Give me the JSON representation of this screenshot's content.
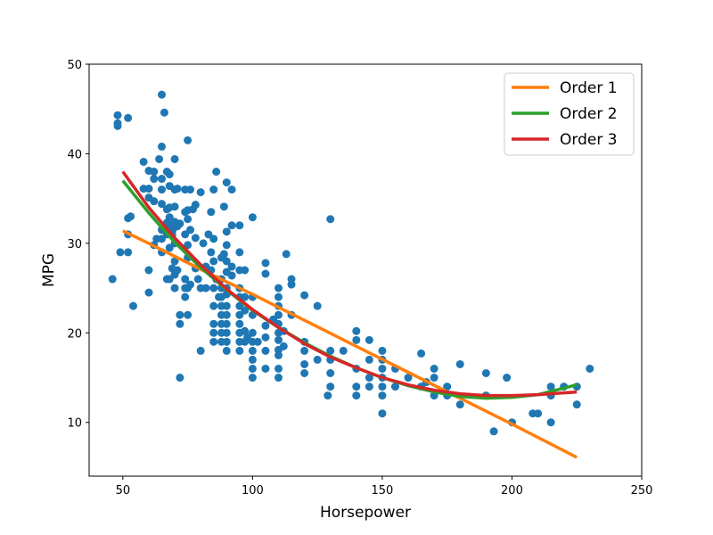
{
  "chart_data": {
    "type": "scatter",
    "xlabel": "Horsepower",
    "ylabel": "MPG",
    "xlim": [
      37,
      250
    ],
    "ylim": [
      4,
      50
    ],
    "xticks": [
      50,
      100,
      150,
      200,
      250
    ],
    "yticks": [
      10,
      20,
      30,
      40,
      50
    ],
    "grid": false,
    "legend_position": "top-right",
    "colors": {
      "points": "#1f77b4",
      "order1": "#ff7f0e",
      "order2": "#2ca02c",
      "order3": "#d62728"
    },
    "points": [
      [
        46,
        26
      ],
      [
        48,
        44.3
      ],
      [
        48,
        43.4
      ],
      [
        48,
        43.1
      ],
      [
        49,
        29
      ],
      [
        52,
        44
      ],
      [
        52,
        32.8
      ],
      [
        52,
        31
      ],
      [
        52,
        29
      ],
      [
        53,
        33
      ],
      [
        54,
        23
      ],
      [
        58,
        39.1
      ],
      [
        58,
        36.1
      ],
      [
        60,
        38.1
      ],
      [
        60,
        36.1
      ],
      [
        60,
        35.1
      ],
      [
        60,
        27
      ],
      [
        60,
        24.5
      ],
      [
        62,
        38
      ],
      [
        62,
        37.2
      ],
      [
        62,
        34.7
      ],
      [
        62,
        29.8
      ],
      [
        63,
        30.5
      ],
      [
        64,
        39.4
      ],
      [
        65,
        46.6
      ],
      [
        65,
        40.8
      ],
      [
        65,
        37.2
      ],
      [
        65,
        36
      ],
      [
        65,
        34.4
      ],
      [
        65,
        31.5
      ],
      [
        65,
        30.5
      ],
      [
        65,
        29
      ],
      [
        66,
        44.6
      ],
      [
        67,
        38
      ],
      [
        67,
        33.8
      ],
      [
        67,
        32.3
      ],
      [
        67,
        31.6
      ],
      [
        67,
        31
      ],
      [
        67,
        26
      ],
      [
        68,
        37.7
      ],
      [
        68,
        36.4
      ],
      [
        68,
        34
      ],
      [
        68,
        32.9
      ],
      [
        68,
        29.5
      ],
      [
        68,
        26
      ],
      [
        69,
        32
      ],
      [
        69,
        31.3
      ],
      [
        69,
        30.9
      ],
      [
        69,
        27.2
      ],
      [
        70,
        39.4
      ],
      [
        70,
        36
      ],
      [
        70,
        34.1
      ],
      [
        70,
        32.4
      ],
      [
        70,
        31.8
      ],
      [
        70,
        30
      ],
      [
        70,
        28
      ],
      [
        70,
        26.5
      ],
      [
        70,
        25
      ],
      [
        71,
        36.1
      ],
      [
        71,
        31.9
      ],
      [
        71,
        27
      ],
      [
        72,
        32.2
      ],
      [
        72,
        22
      ],
      [
        72,
        21
      ],
      [
        72,
        15
      ],
      [
        74,
        36
      ],
      [
        74,
        33.5
      ],
      [
        74,
        31
      ],
      [
        74,
        26
      ],
      [
        74,
        25
      ],
      [
        74,
        24
      ],
      [
        75,
        41.5
      ],
      [
        75,
        33.7
      ],
      [
        75,
        32.7
      ],
      [
        75,
        29.8
      ],
      [
        75,
        28.4
      ],
      [
        75,
        25
      ],
      [
        75,
        22
      ],
      [
        76,
        36
      ],
      [
        76,
        31.5
      ],
      [
        76,
        25.4
      ],
      [
        77,
        33.8
      ],
      [
        78,
        34.3
      ],
      [
        78,
        30.6
      ],
      [
        78,
        27.2
      ],
      [
        79,
        26
      ],
      [
        80,
        35.7
      ],
      [
        80,
        25
      ],
      [
        80,
        18
      ],
      [
        81,
        30
      ],
      [
        82,
        27.4
      ],
      [
        82,
        25
      ],
      [
        83,
        31
      ],
      [
        84,
        33.5
      ],
      [
        84,
        29
      ],
      [
        84,
        27
      ],
      [
        85,
        36
      ],
      [
        85,
        30.5
      ],
      [
        85,
        28
      ],
      [
        85,
        25
      ],
      [
        85,
        23
      ],
      [
        85,
        21
      ],
      [
        85,
        20
      ],
      [
        85,
        19
      ],
      [
        86,
        38
      ],
      [
        86,
        26
      ],
      [
        87,
        24
      ],
      [
        88,
        28.4
      ],
      [
        88,
        26
      ],
      [
        88,
        25
      ],
      [
        88,
        24
      ],
      [
        88,
        23
      ],
      [
        88,
        22
      ],
      [
        88,
        21
      ],
      [
        88,
        20
      ],
      [
        88,
        19
      ],
      [
        89,
        34.1
      ],
      [
        89,
        28.8
      ],
      [
        90,
        36.8
      ],
      [
        90,
        31.3
      ],
      [
        90,
        29.8
      ],
      [
        90,
        28
      ],
      [
        90,
        26.8
      ],
      [
        90,
        25
      ],
      [
        90,
        24.3
      ],
      [
        90,
        23
      ],
      [
        90,
        22
      ],
      [
        90,
        21
      ],
      [
        90,
        20
      ],
      [
        90,
        19
      ],
      [
        90,
        18
      ],
      [
        92,
        36
      ],
      [
        92,
        32
      ],
      [
        92,
        27.4
      ],
      [
        92,
        26.4
      ],
      [
        95,
        32
      ],
      [
        95,
        29
      ],
      [
        95,
        27
      ],
      [
        95,
        25
      ],
      [
        95,
        24
      ],
      [
        95,
        23
      ],
      [
        95,
        22
      ],
      [
        95,
        21
      ],
      [
        95,
        20
      ],
      [
        95,
        19
      ],
      [
        95,
        18
      ],
      [
        97,
        27
      ],
      [
        97,
        24
      ],
      [
        97,
        22.5
      ],
      [
        97,
        20.2
      ],
      [
        97,
        19
      ],
      [
        98,
        19.5
      ],
      [
        100,
        32.9
      ],
      [
        100,
        24
      ],
      [
        100,
        22
      ],
      [
        100,
        20
      ],
      [
        100,
        19
      ],
      [
        100,
        18
      ],
      [
        100,
        17
      ],
      [
        100,
        16
      ],
      [
        100,
        15
      ],
      [
        102,
        19
      ],
      [
        105,
        27.8
      ],
      [
        105,
        26.6
      ],
      [
        105,
        20.8
      ],
      [
        105,
        19.5
      ],
      [
        105,
        18
      ],
      [
        105,
        16
      ],
      [
        108,
        21.5
      ],
      [
        110,
        25
      ],
      [
        110,
        24
      ],
      [
        110,
        23
      ],
      [
        110,
        22
      ],
      [
        110,
        21
      ],
      [
        110,
        20
      ],
      [
        110,
        19.2
      ],
      [
        110,
        18.1
      ],
      [
        110,
        17.5
      ],
      [
        110,
        16
      ],
      [
        110,
        15
      ],
      [
        112,
        20.2
      ],
      [
        112,
        18.5
      ],
      [
        113,
        28.8
      ],
      [
        115,
        26
      ],
      [
        115,
        25.4
      ],
      [
        115,
        22
      ],
      [
        120,
        24.2
      ],
      [
        120,
        19
      ],
      [
        120,
        18
      ],
      [
        120,
        16.5
      ],
      [
        120,
        15.5
      ],
      [
        125,
        23
      ],
      [
        125,
        17
      ],
      [
        129,
        13
      ],
      [
        130,
        32.7
      ],
      [
        130,
        18
      ],
      [
        130,
        17
      ],
      [
        130,
        15.5
      ],
      [
        130,
        14
      ],
      [
        135,
        18
      ],
      [
        140,
        20.2
      ],
      [
        140,
        19.2
      ],
      [
        140,
        16
      ],
      [
        140,
        14
      ],
      [
        140,
        13
      ],
      [
        145,
        19.2
      ],
      [
        145,
        17
      ],
      [
        145,
        15
      ],
      [
        145,
        14
      ],
      [
        150,
        18
      ],
      [
        150,
        17
      ],
      [
        150,
        16
      ],
      [
        150,
        15
      ],
      [
        150,
        14
      ],
      [
        150,
        13
      ],
      [
        150,
        11
      ],
      [
        155,
        16
      ],
      [
        155,
        14
      ],
      [
        160,
        15
      ],
      [
        165,
        17.7
      ],
      [
        165,
        14
      ],
      [
        167,
        14.5
      ],
      [
        170,
        16
      ],
      [
        170,
        15
      ],
      [
        170,
        13
      ],
      [
        175,
        14
      ],
      [
        175,
        13
      ],
      [
        180,
        16.5
      ],
      [
        180,
        12
      ],
      [
        190,
        15.5
      ],
      [
        190,
        13
      ],
      [
        193,
        9
      ],
      [
        198,
        15
      ],
      [
        200,
        10
      ],
      [
        208,
        11
      ],
      [
        210,
        11
      ],
      [
        215,
        14
      ],
      [
        215,
        13
      ],
      [
        215,
        10
      ],
      [
        220,
        14
      ],
      [
        225,
        14
      ],
      [
        225,
        12
      ],
      [
        230,
        16
      ]
    ],
    "series": [
      {
        "name": "Order 1",
        "x": [
          50,
          60,
          80,
          100,
          120,
          140,
          160,
          180,
          200,
          225
        ],
        "y": [
          31.4,
          30.0,
          27.1,
          24.3,
          21.4,
          18.5,
          15.6,
          12.7,
          9.8,
          6.1
        ]
      },
      {
        "name": "Order 2",
        "x": [
          50,
          60,
          70,
          80,
          90,
          100,
          110,
          120,
          130,
          140,
          150,
          160,
          170,
          180,
          190,
          200,
          210,
          225
        ],
        "y": [
          37.0,
          33.4,
          30.1,
          27.3,
          24.8,
          22.5,
          20.6,
          18.9,
          17.4,
          16.1,
          15.0,
          14.1,
          13.4,
          12.9,
          12.7,
          12.8,
          13.1,
          14.2
        ]
      },
      {
        "name": "Order 3",
        "x": [
          50,
          60,
          70,
          80,
          90,
          100,
          110,
          120,
          130,
          140,
          150,
          160,
          170,
          180,
          190,
          200,
          210,
          225
        ],
        "y": [
          38.0,
          34.0,
          30.6,
          27.6,
          24.9,
          22.6,
          20.6,
          18.8,
          17.3,
          16.1,
          15.0,
          14.2,
          13.6,
          13.2,
          13.0,
          13.0,
          13.1,
          13.4
        ]
      }
    ]
  }
}
